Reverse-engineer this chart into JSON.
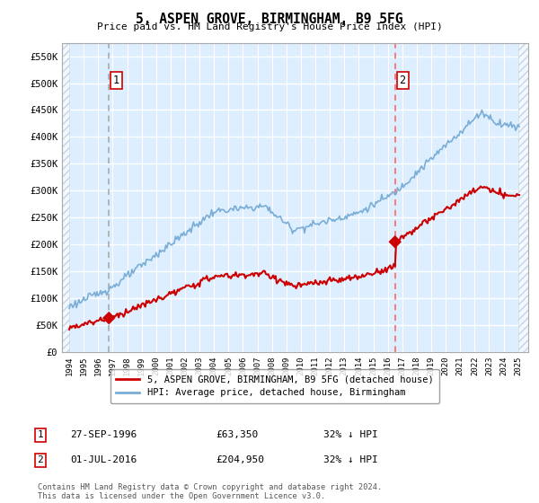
{
  "title": "5, ASPEN GROVE, BIRMINGHAM, B9 5FG",
  "subtitle": "Price paid vs. HM Land Registry's House Price Index (HPI)",
  "ytick_values": [
    0,
    50000,
    100000,
    150000,
    200000,
    250000,
    300000,
    350000,
    400000,
    450000,
    500000,
    550000
  ],
  "ylim": [
    0,
    575000
  ],
  "xlim_start": 1993.5,
  "xlim_end": 2025.7,
  "sale1_date": 1996.74,
  "sale1_price": 63350,
  "sale1_label": "1",
  "sale1_text": "27-SEP-1996",
  "sale1_amount": "£63,350",
  "sale1_pct": "32% ↓ HPI",
  "sale2_date": 2016.5,
  "sale2_price": 204950,
  "sale2_label": "2",
  "sale2_text": "01-JUL-2016",
  "sale2_amount": "£204,950",
  "sale2_pct": "32% ↓ HPI",
  "legend_property": "5, ASPEN GROVE, BIRMINGHAM, B9 5FG (detached house)",
  "legend_hpi": "HPI: Average price, detached house, Birmingham",
  "footer": "Contains HM Land Registry data © Crown copyright and database right 2024.\nThis data is licensed under the Open Government Licence v3.0.",
  "line_color_property": "#cc0000",
  "line_color_hpi": "#7aaed6",
  "bg_color": "#ddeeff",
  "grid_color": "#ffffff",
  "sale_marker_color": "#cc0000",
  "vline1_color": "#aaaaaa",
  "vline2_color": "#ff6666"
}
